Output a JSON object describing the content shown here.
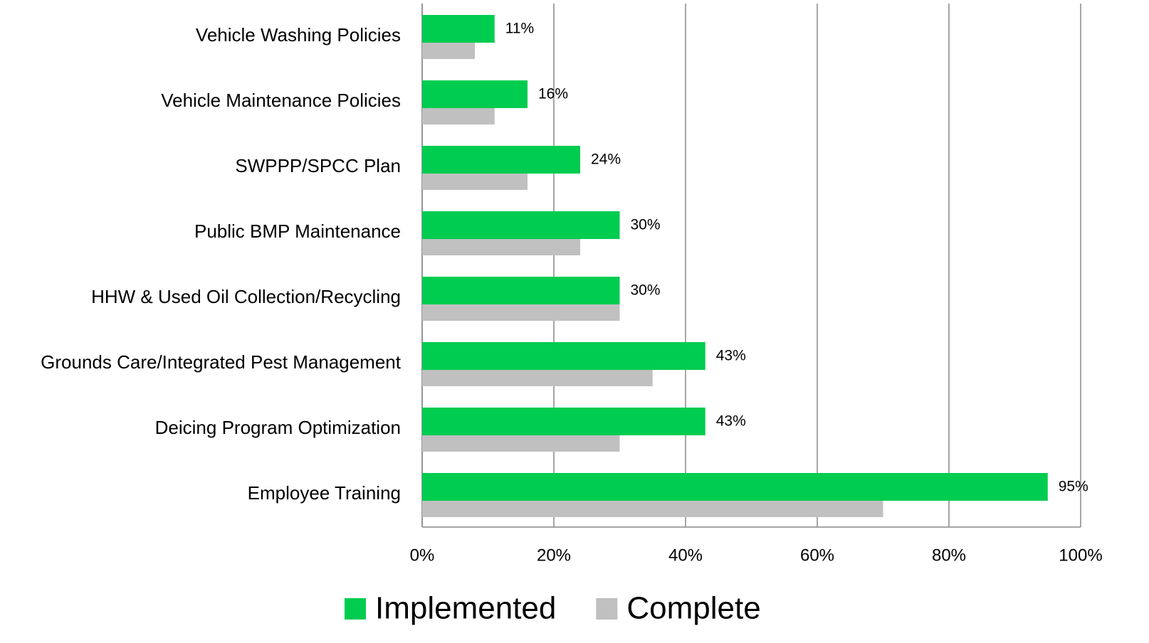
{
  "chart_data": {
    "type": "barh",
    "categories": [
      "Vehicle Washing Policies",
      "Vehicle Maintenance Policies",
      "SWPPP/SPCC Plan",
      "Public BMP Maintenance",
      "HHW & Used Oil Collection/Recycling",
      "Grounds Care/Integrated Pest Management",
      "Deicing Program Optimization",
      "Employee Training"
    ],
    "series": [
      {
        "name": "Implemented",
        "color": "#00cc50",
        "values": [
          11,
          16,
          24,
          30,
          30,
          43,
          43,
          95
        ],
        "value_labels": [
          "11%",
          "16%",
          "24%",
          "30%",
          "30%",
          "43%",
          "43%",
          "95%"
        ]
      },
      {
        "name": "Complete",
        "color": "#c0c0c0",
        "values": [
          8,
          11,
          16,
          24,
          30,
          35,
          30,
          70
        ]
      }
    ],
    "xlim": [
      0,
      100
    ],
    "xticks": [
      {
        "value": 0,
        "label": "0%"
      },
      {
        "value": 20,
        "label": "20%"
      },
      {
        "value": 40,
        "label": "40%"
      },
      {
        "value": 60,
        "label": "60%"
      },
      {
        "value": 80,
        "label": "80%"
      },
      {
        "value": 100,
        "label": "100%"
      }
    ],
    "grid": true,
    "legend": "bottom"
  }
}
